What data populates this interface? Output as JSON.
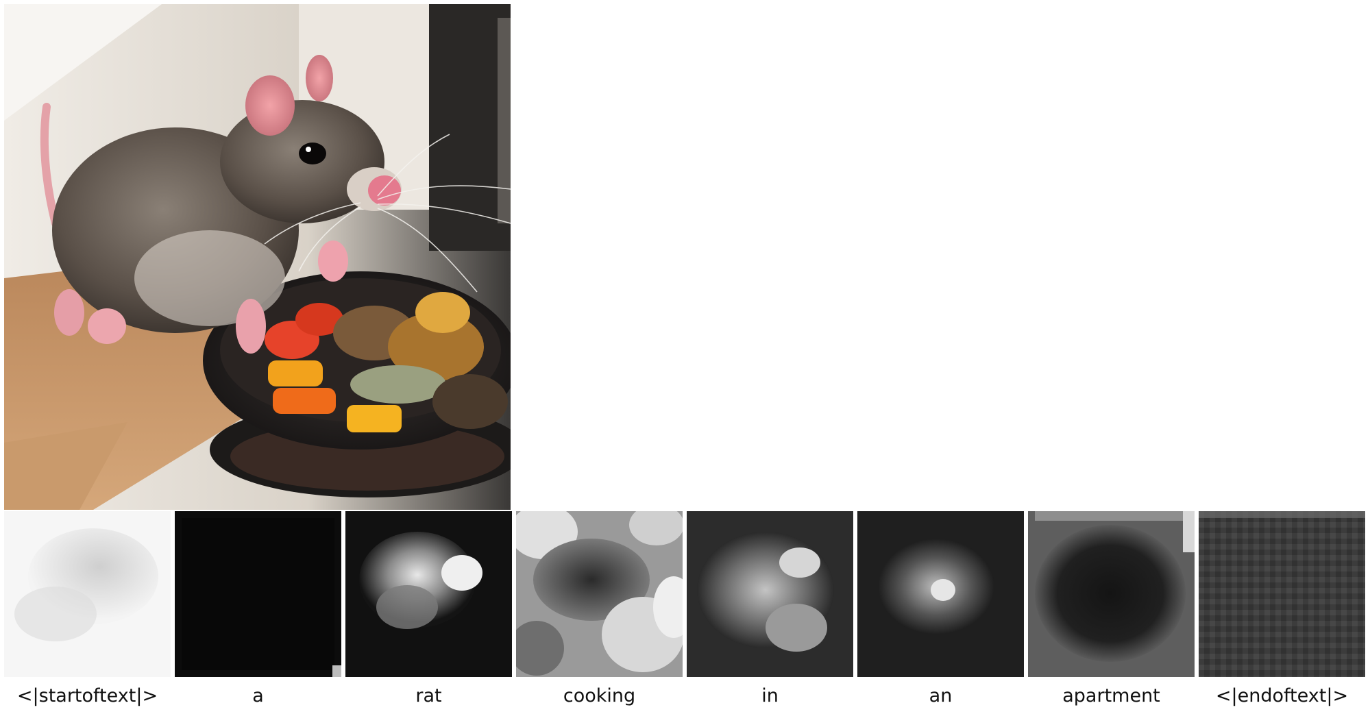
{
  "figure": {
    "main_image": {
      "subject": "rat",
      "scene": "rat standing beside a skillet of roasted vegetables in a kitchen"
    },
    "tokens": [
      {
        "label": "<|startoftext|>",
        "map_style": "uniform-bright"
      },
      {
        "label": "a",
        "map_style": "dark"
      },
      {
        "label": "rat",
        "map_style": "rat-highlight"
      },
      {
        "label": "cooking",
        "map_style": "food-highlight"
      },
      {
        "label": "in",
        "map_style": "rat-soft"
      },
      {
        "label": "an",
        "map_style": "rat-dim"
      },
      {
        "label": "apartment",
        "map_style": "background"
      },
      {
        "label": "<|endoftext|>",
        "map_style": "noise-gray"
      }
    ]
  }
}
